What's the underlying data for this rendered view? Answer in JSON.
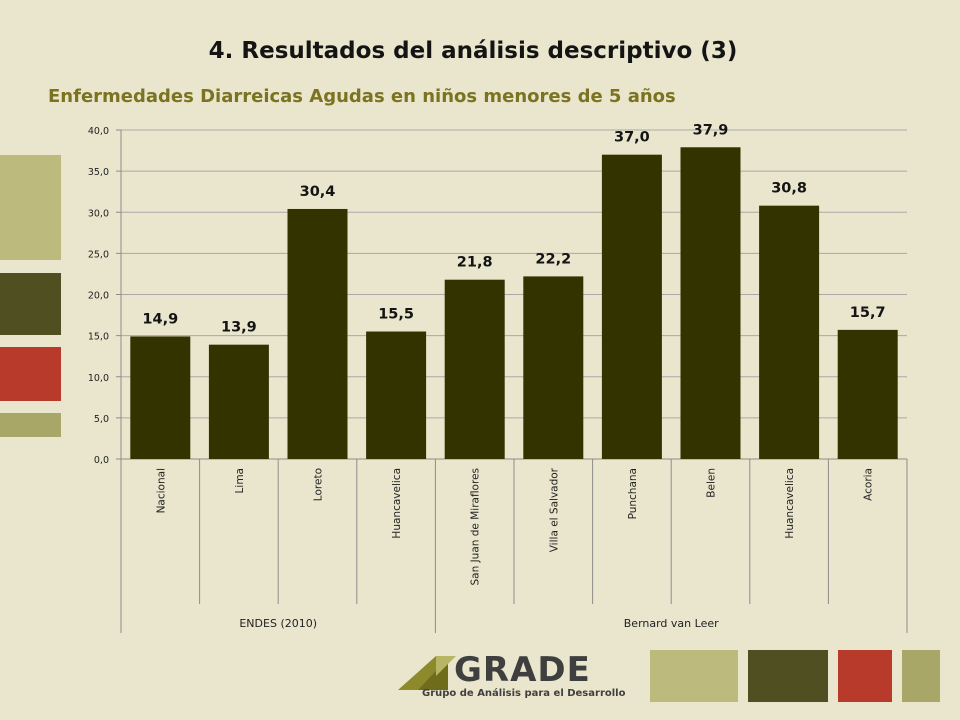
{
  "slide": {
    "title": "4. Resultados del análisis descriptivo (3)",
    "colors": {
      "background": "#e9e6cd",
      "bar": "#333300",
      "accent_olive": "#bcba7c",
      "accent_dark": "#4f4f21",
      "accent_red": "#b83a2a",
      "accent_light": "#a8a768"
    }
  },
  "logo": {
    "name": "GRADE",
    "tagline": "Grupo de Análisis para el Desarrollo",
    "icon": "grade-logo-triangle-icon"
  },
  "chart_data": {
    "type": "bar",
    "title": "Enfermedades Diarreicas Agudas en niños menores de 5 años",
    "categories": [
      "Nacional",
      "Lima",
      "Loreto",
      "Huancavelica",
      "San Juan de Miraflores",
      "Villa el Salvador",
      "Punchana",
      "Belen",
      "Huancavelica",
      "Acoria"
    ],
    "values": [
      14.9,
      13.9,
      30.4,
      15.5,
      21.8,
      22.2,
      37.0,
      37.9,
      30.8,
      15.7
    ],
    "value_labels": [
      "14,9",
      "13,9",
      "30,4",
      "15,5",
      "21,8",
      "22,2",
      "37,0",
      "37,9",
      "30,8",
      "15,7"
    ],
    "groups": [
      {
        "label": "ENDES (2010)",
        "start": 0,
        "end": 3
      },
      {
        "label": "Bernard van Leer",
        "start": 4,
        "end": 9
      }
    ],
    "yticks": [
      "0,0",
      "5,0",
      "10,0",
      "15,0",
      "20,0",
      "25,0",
      "30,0",
      "35,0",
      "40,0"
    ],
    "ylim": [
      0,
      40
    ],
    "grid": true,
    "xlabel": "",
    "ylabel": ""
  }
}
